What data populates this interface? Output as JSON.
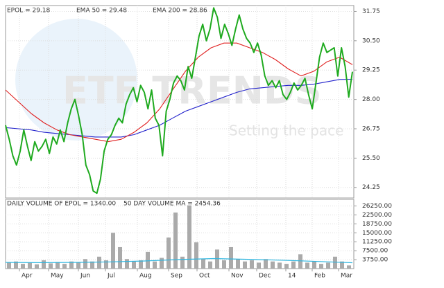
{
  "chart_data": {
    "type": "stock",
    "legend": [
      "EPOL = 29.18",
      "EMA 50 = 29.48",
      "EMA 200 = 28.86"
    ],
    "watermark": [
      "ETF TRENDS",
      "Setting the pace"
    ],
    "series": [
      {
        "name": "EPOL",
        "color": "#1faa1f",
        "values": [
          26.9,
          26.3,
          25.6,
          25.2,
          25.8,
          26.7,
          26.0,
          25.4,
          26.2,
          25.8,
          26.0,
          26.3,
          25.7,
          26.4,
          26.1,
          26.7,
          26.2,
          27.0,
          27.6,
          28.0,
          27.3,
          26.5,
          25.2,
          24.8,
          24.1,
          24.0,
          24.6,
          25.8,
          26.3,
          26.5,
          26.9,
          27.2,
          27.0,
          27.8,
          28.2,
          28.5,
          27.9,
          28.6,
          28.3,
          27.6,
          28.4,
          27.2,
          26.9,
          25.6,
          27.5,
          28.0,
          28.7,
          29.0,
          28.8,
          28.4,
          29.4,
          28.9,
          29.8,
          30.7,
          31.2,
          30.5,
          31.0,
          31.9,
          31.5,
          30.6,
          31.2,
          30.8,
          30.3,
          31.0,
          31.6,
          31.0,
          30.6,
          30.4,
          30.0,
          30.4,
          29.9,
          29.0,
          28.6,
          28.8,
          28.5,
          28.8,
          28.2,
          28.0,
          28.3,
          28.7,
          28.4,
          28.6,
          28.9,
          28.2,
          27.6,
          28.7,
          29.8,
          30.4,
          30.0,
          30.1,
          30.2,
          29.0,
          30.2,
          29.4,
          28.1,
          29.18
        ]
      },
      {
        "name": "EMA 50",
        "color": "#e02020",
        "values": [
          28.4,
          27.9,
          27.4,
          27.0,
          26.7,
          26.5,
          26.4,
          26.3,
          26.2,
          26.3,
          26.6,
          27.0,
          27.6,
          28.4,
          29.2,
          29.8,
          30.2,
          30.4,
          30.4,
          30.2,
          30.0,
          29.7,
          29.3,
          29.0,
          29.2,
          29.6,
          29.8,
          29.48
        ]
      },
      {
        "name": "EMA 200",
        "color": "#2323cc",
        "values": [
          26.8,
          26.75,
          26.7,
          26.6,
          26.55,
          26.5,
          26.45,
          26.4,
          26.4,
          26.4,
          26.5,
          26.7,
          26.9,
          27.2,
          27.5,
          27.7,
          27.9,
          28.1,
          28.3,
          28.45,
          28.5,
          28.55,
          28.6,
          28.6,
          28.65,
          28.75,
          28.85,
          28.86
        ]
      }
    ],
    "ylim": [
      23.8,
      32.0
    ],
    "yticks": [
      24.25,
      {
        "value": 25.5,
        "label": "25.50"
      },
      26.75,
      {
        "value": 28,
        "label": "28.00"
      },
      29.25,
      {
        "value": 30.5,
        "label": "30.50"
      },
      31.75
    ],
    "x_labels": [
      "Apr",
      "May",
      "Jun",
      "Jul",
      "Aug",
      "Sep",
      "Oct",
      "Nov",
      "Dec",
      "14",
      "Feb",
      "Mar"
    ],
    "volume": {
      "legend": [
        "DAILY VOLUME OF EPOL = 1340.00",
        "50 DAY VOLUME MA = 2454.36"
      ],
      "color": "#aaaaaa",
      "ma_color": "#2fb6e0",
      "values": [
        2500,
        3000,
        2000,
        2600,
        1800,
        3500,
        2200,
        2800,
        2000,
        3000,
        2500,
        4000,
        3000,
        5000,
        3500,
        15000,
        9000,
        4000,
        3000,
        3500,
        7000,
        3000,
        4500,
        13000,
        23500,
        5000,
        26500,
        11000,
        4000,
        3000,
        8000,
        3500,
        9000,
        4000,
        3000,
        3500,
        2500,
        4000,
        3000,
        2500,
        2000,
        3000,
        6000,
        2500,
        3000,
        2000,
        2500,
        5000,
        3000,
        1340
      ],
      "ma": [
        2600,
        2500,
        2600,
        2800,
        3200,
        3800,
        4200,
        3900,
        3500,
        3000,
        2454.36
      ],
      "ylim": [
        0,
        29000
      ],
      "yticks": [
        {
          "value": 3750,
          "label": "3750.00"
        },
        {
          "value": 7500,
          "label": "7500.00"
        },
        {
          "value": 11250,
          "label": "11250.00"
        },
        {
          "value": 15000,
          "label": "15000.00"
        },
        {
          "value": 18750,
          "label": "18750.00"
        },
        {
          "value": 22500,
          "label": "22500.00"
        },
        {
          "value": 26250,
          "label": "26250.00"
        }
      ]
    },
    "grid": true
  }
}
